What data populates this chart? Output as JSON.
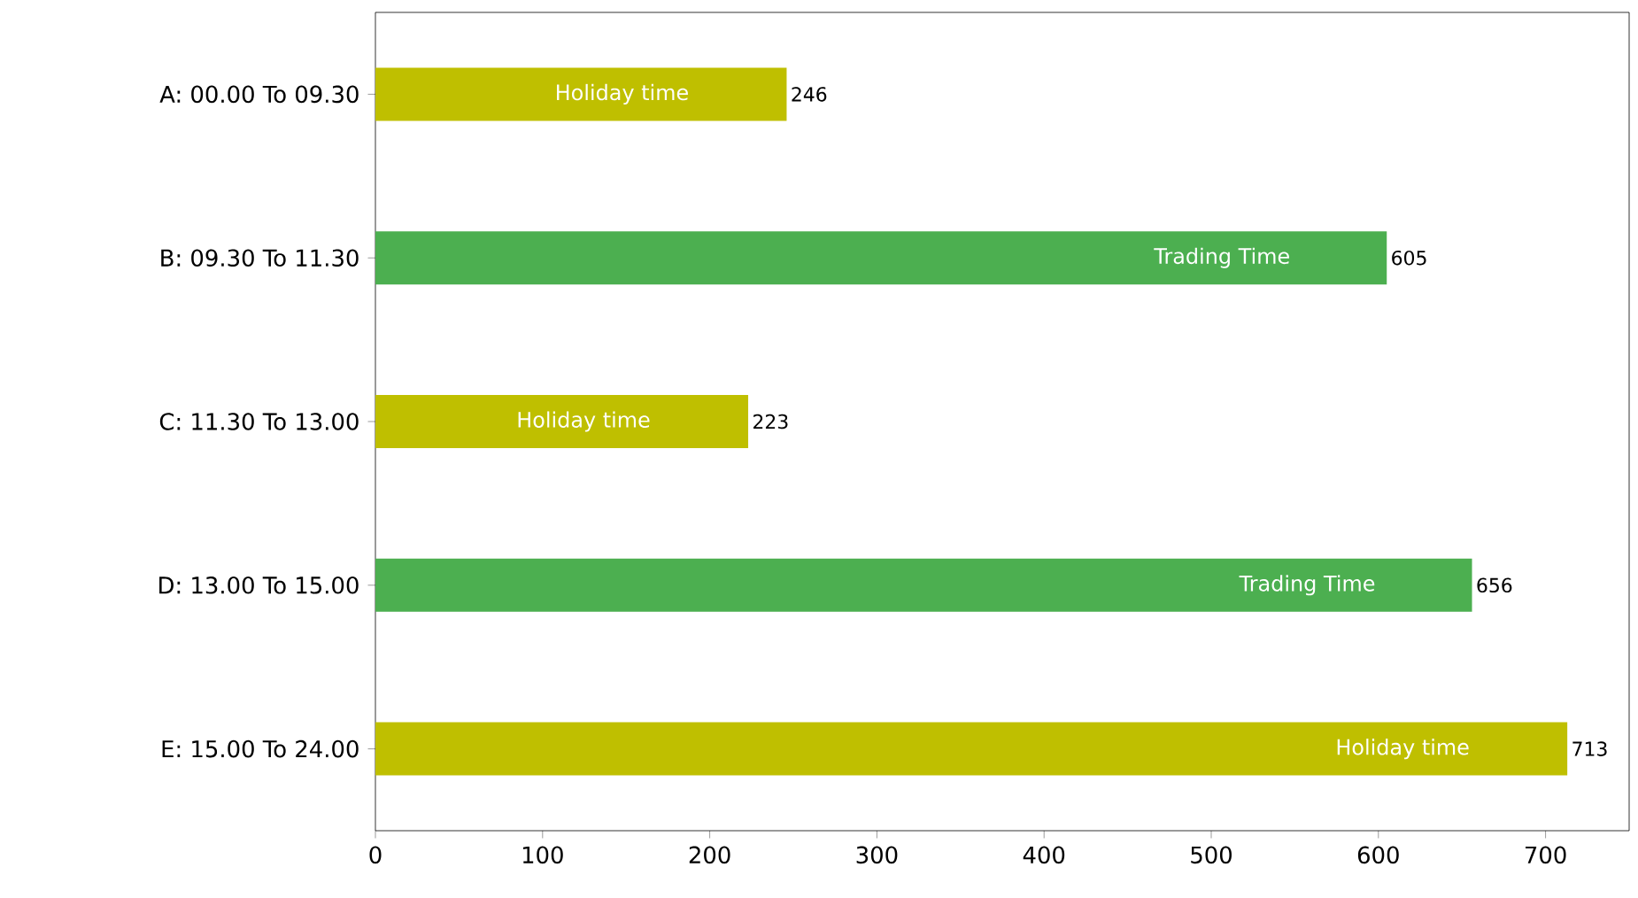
{
  "chart_data": {
    "type": "bar",
    "orientation": "horizontal",
    "categories": [
      "A: 00.00 To 09.30",
      "B: 09.30 To 11.30",
      "C: 11.30 To 13.00",
      "D: 13.00 To 15.00",
      "E: 15.00 To 24.00"
    ],
    "values": [
      246,
      605,
      223,
      656,
      713
    ],
    "colors": [
      "#bfbf00",
      "#4caf50",
      "#bfbf00",
      "#4caf50",
      "#bfbf00"
    ],
    "xlim": [
      0,
      750
    ],
    "xticks": [
      0,
      100,
      200,
      300,
      400,
      500,
      600,
      700
    ],
    "data_labels": true,
    "annotations": [
      "Holiday time",
      "Trading Time",
      "Holiday time",
      "Trading Time",
      "Holiday time"
    ]
  }
}
